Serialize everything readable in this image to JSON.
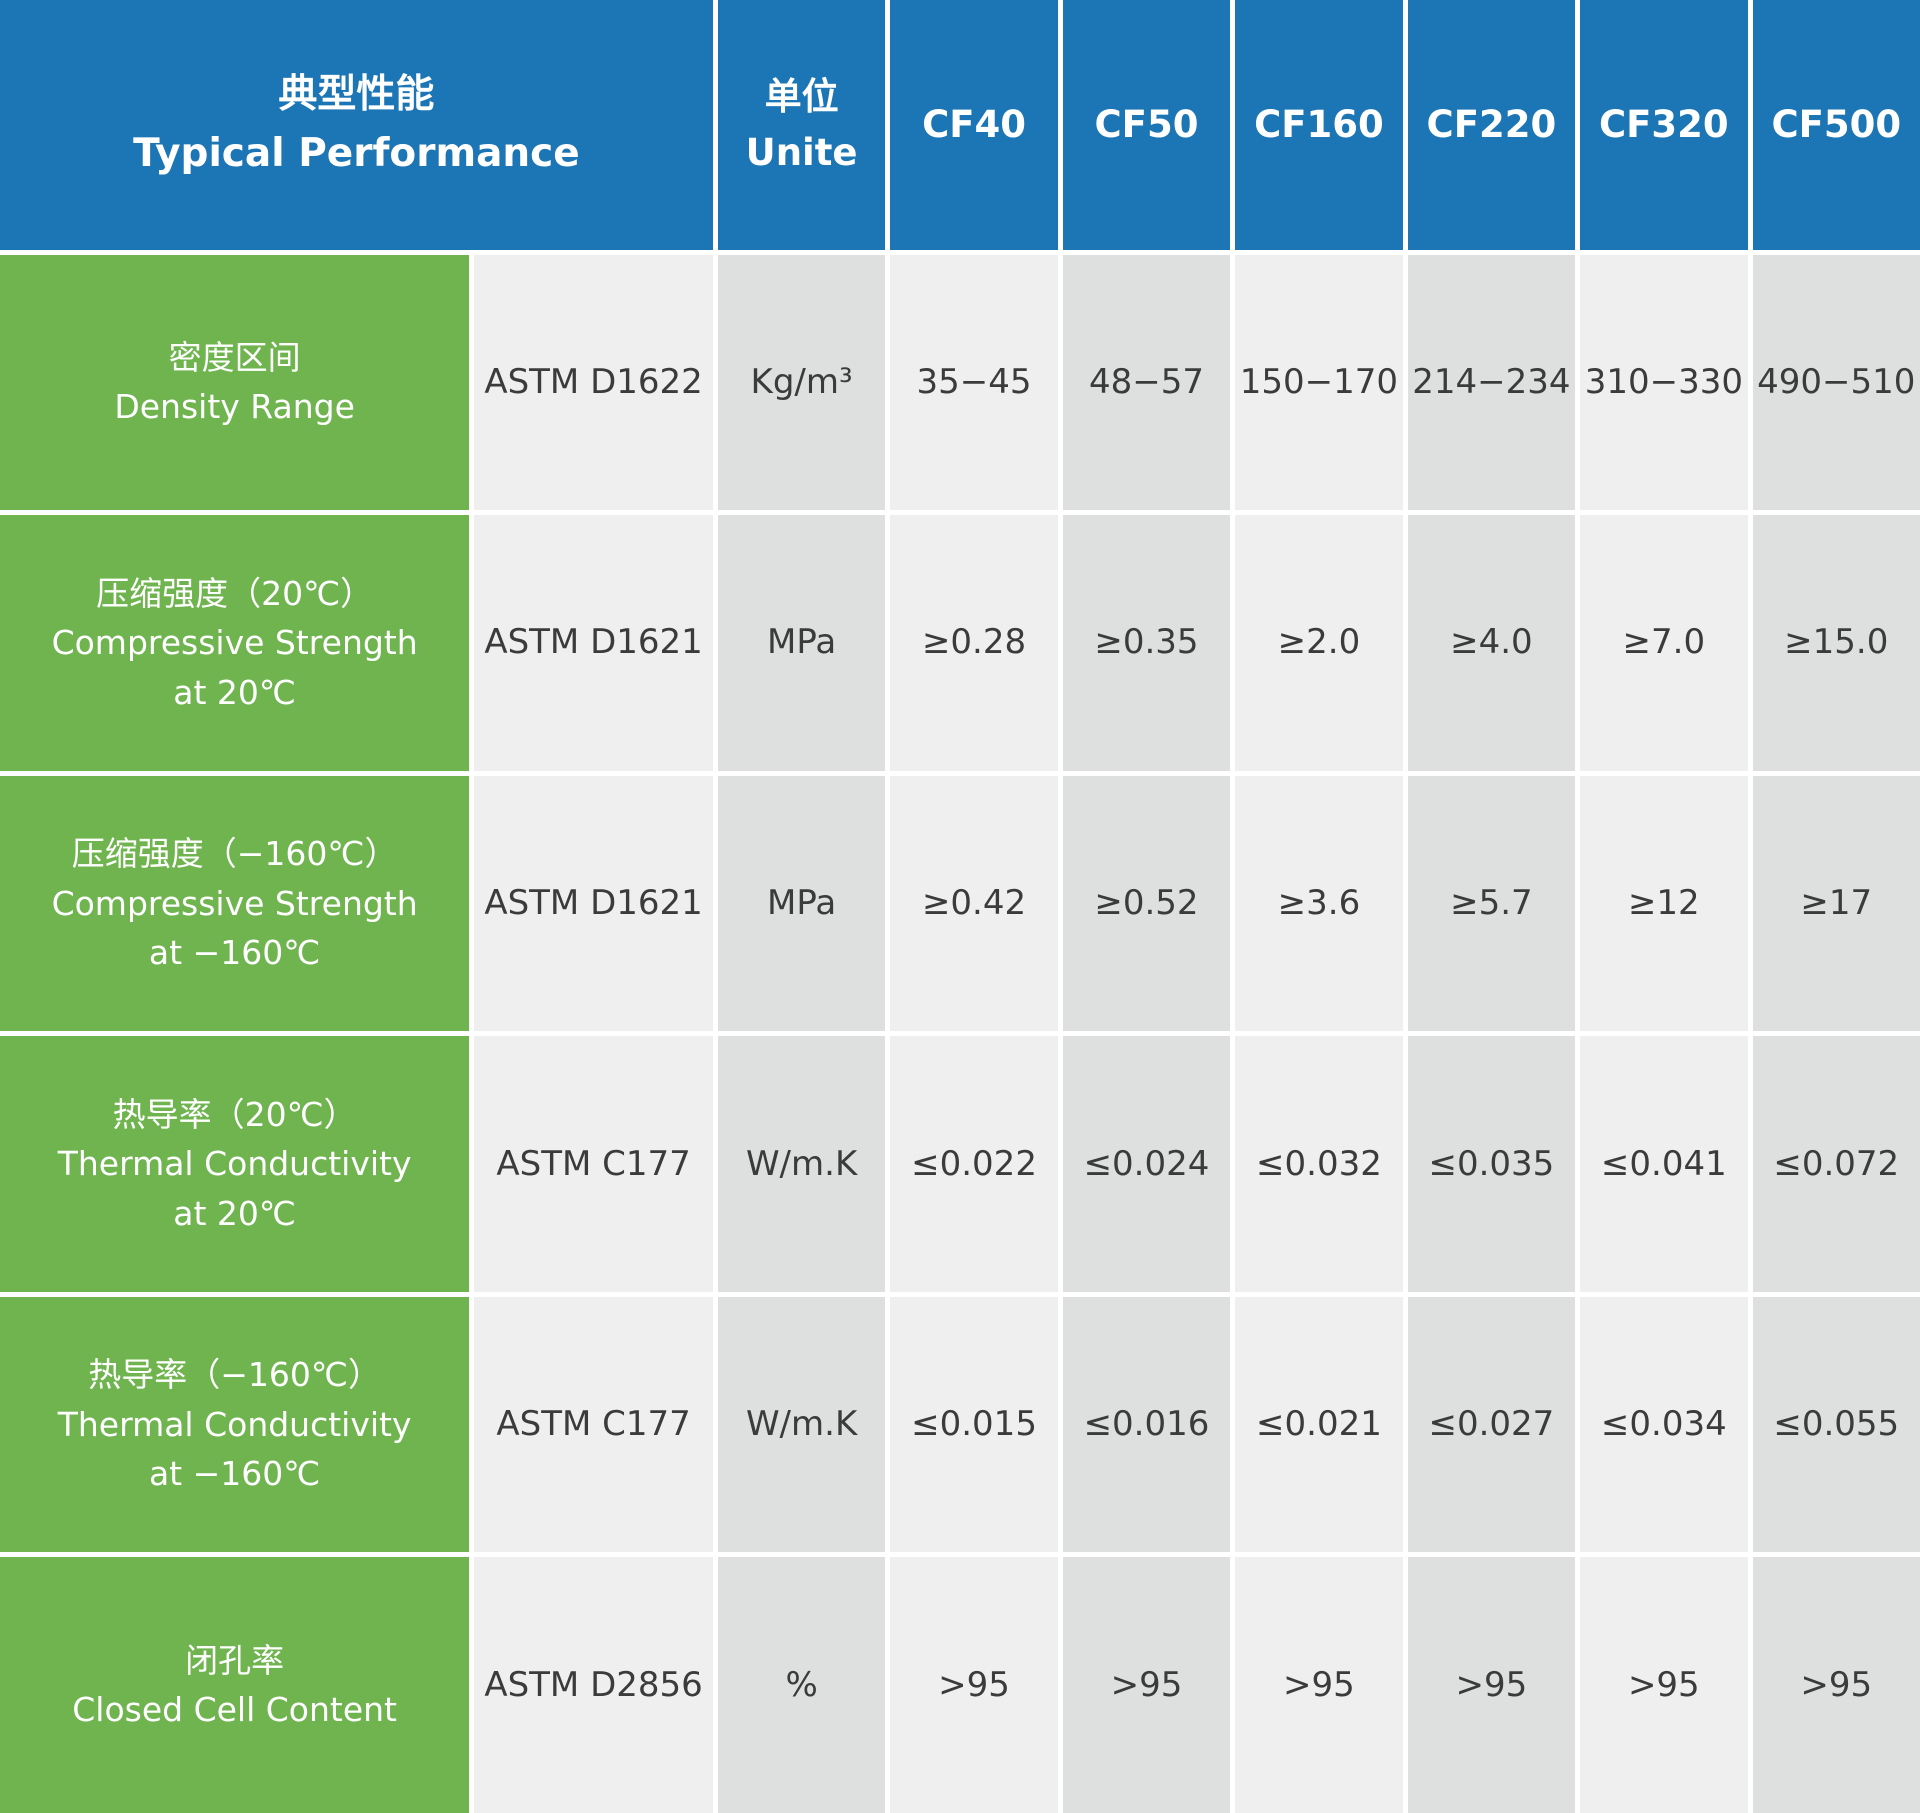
{
  "colors": {
    "header-blue": "#1c75b4",
    "property-green": "#6fb44f",
    "column-light": "#efefef",
    "column-dark": "#dee0e0",
    "value-text": "#3b3b3b"
  },
  "table": {
    "header": {
      "performance": [
        "典型性能",
        "Typical Performance"
      ],
      "unit": [
        "单位",
        "Unite"
      ],
      "products": [
        "CF40",
        "CF50",
        "CF160",
        "CF220",
        "CF320",
        "CF500"
      ]
    },
    "rows": [
      {
        "property": [
          "密度区间",
          "Density Range"
        ],
        "standard": "ASTM D1622",
        "unit": "Kg/m³",
        "values": [
          "35−45",
          "48−57",
          "150−170",
          "214−234",
          "310−330",
          "490−510"
        ]
      },
      {
        "property": [
          "压缩强度（20℃）",
          "Compressive Strength",
          "at 20℃"
        ],
        "standard": "ASTM D1621",
        "unit": "MPa",
        "values": [
          "≥0.28",
          "≥0.35",
          "≥2.0",
          "≥4.0",
          "≥7.0",
          "≥15.0"
        ]
      },
      {
        "property": [
          "压缩强度（−160℃）",
          "Compressive Strength",
          "at −160℃"
        ],
        "standard": "ASTM D1621",
        "unit": "MPa",
        "values": [
          "≥0.42",
          "≥0.52",
          "≥3.6",
          "≥5.7",
          "≥12",
          "≥17"
        ]
      },
      {
        "property": [
          "热导率（20℃）",
          "Thermal Conductivity",
          "at 20℃"
        ],
        "standard": "ASTM C177",
        "unit": "W/m.K",
        "values": [
          "≤0.022",
          "≤0.024",
          "≤0.032",
          "≤0.035",
          "≤0.041",
          "≤0.072"
        ]
      },
      {
        "property": [
          "热导率（−160℃）",
          "Thermal Conductivity",
          "at −160℃"
        ],
        "standard": "ASTM C177",
        "unit": "W/m.K",
        "values": [
          "≤0.015",
          "≤0.016",
          "≤0.021",
          "≤0.027",
          "≤0.034",
          "≤0.055"
        ]
      },
      {
        "property": [
          "闭孔率",
          "Closed Cell Content"
        ],
        "standard": "ASTM D2856",
        "unit": "%",
        "values": [
          ">95",
          ">95",
          ">95",
          ">95",
          ">95",
          ">95"
        ]
      }
    ]
  },
  "chart_data": {
    "type": "table",
    "title": "典型性能 Typical Performance",
    "header_row": [
      "典型性能 Typical Performance",
      "单位 Unite",
      "CF40",
      "CF50",
      "CF160",
      "CF220",
      "CF320",
      "CF500"
    ],
    "rows": [
      [
        "密度区间 Density Range",
        "ASTM D1622",
        "Kg/m³",
        "35−45",
        "48−57",
        "150−170",
        "214−234",
        "310−330",
        "490−510"
      ],
      [
        "压缩强度（20℃） Compressive Strength at 20℃",
        "ASTM D1621",
        "MPa",
        "≥0.28",
        "≥0.35",
        "≥2.0",
        "≥4.0",
        "≥7.0",
        "≥15.0"
      ],
      [
        "压缩强度（−160℃） Compressive Strength at −160℃",
        "ASTM D1621",
        "MPa",
        "≥0.42",
        "≥0.52",
        "≥3.6",
        "≥5.7",
        "≥12",
        "≥17"
      ],
      [
        "热导率（20℃） Thermal Conductivity at 20℃",
        "ASTM C177",
        "W/m.K",
        "≤0.022",
        "≤0.024",
        "≤0.032",
        "≤0.035",
        "≤0.041",
        "≤0.072"
      ],
      [
        "热导率（−160℃） Thermal Conductivity at −160℃",
        "ASTM C177",
        "W/m.K",
        "≤0.015",
        "≤0.016",
        "≤0.021",
        "≤0.027",
        "≤0.034",
        "≤0.055"
      ],
      [
        "闭孔率 Closed Cell Content",
        "ASTM D2856",
        "%",
        ">95",
        ">95",
        ">95",
        ">95",
        ">95",
        ">95"
      ]
    ],
    "layout": {
      "merged_header": "first header cell spans property and test-standard columns",
      "column_shading": "alternating light/dark gray strips",
      "property_column_color": "green",
      "header_color": "blue"
    }
  }
}
